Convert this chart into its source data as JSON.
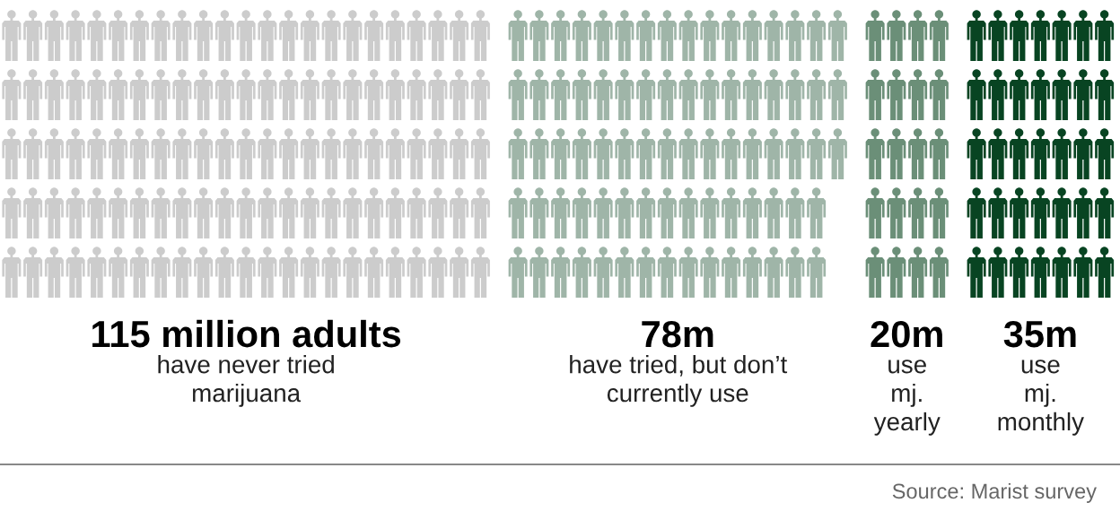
{
  "chart_data": {
    "type": "other",
    "categories": [
      "have never tried\nmarijuana",
      "have tried, but don’t\ncurrently use",
      "use\nmj.\nyearly",
      "use\nmj.\nmonthly"
    ],
    "values": [
      115,
      78,
      20,
      35
    ],
    "value_labels": [
      "115 million adults",
      "78m",
      "20m",
      "35m"
    ],
    "colors": [
      "#cccccc",
      "#9fb5a8",
      "#6b8f78",
      "#084422"
    ],
    "annotations": [
      "Source: Marist survey"
    ]
  }
}
